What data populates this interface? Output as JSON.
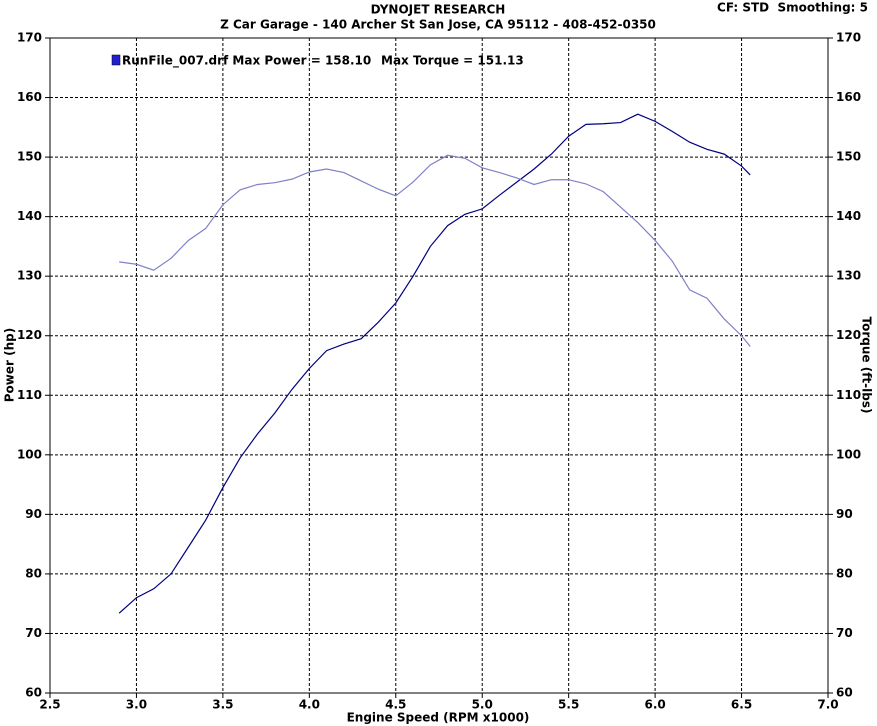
{
  "chart_data": {
    "type": "line",
    "title": "DYNOJET RESEARCH",
    "subtitle": "Z Car Garage - 140 Archer St San Jose, CA 95112 - 408-452-0350",
    "corner_note": "CF: STD  Smoothing: 5",
    "annotations": [
      "RunFile_007.drf Max Power = 158.10",
      "Max Torque = 151.13"
    ],
    "legend_color": "#2020d0",
    "xlabel": "Engine Speed (RPM x1000)",
    "ylabel": "Power (hp)",
    "y2label": "Torque (ft-lbs)",
    "x": [
      2.9,
      3.0,
      3.1,
      3.2,
      3.3,
      3.4,
      3.5,
      3.6,
      3.7,
      3.8,
      3.9,
      4.0,
      4.1,
      4.2,
      4.3,
      4.4,
      4.5,
      4.6,
      4.7,
      4.8,
      4.9,
      5.0,
      5.1,
      5.2,
      5.3,
      5.4,
      5.5,
      5.6,
      5.7,
      5.8,
      5.9,
      6.0,
      6.1,
      6.2,
      6.3,
      6.4,
      6.5,
      6.55
    ],
    "series": [
      {
        "color": "#000080",
        "values": [
          73.4,
          76,
          77.5,
          80,
          84.5,
          89,
          94.5,
          99.5,
          103.5,
          107,
          111,
          114.5,
          117.5,
          118.6,
          119.5,
          122.3,
          125.5,
          130,
          135,
          138.5,
          140.4,
          141.3,
          143.6,
          145.8,
          148,
          150.5,
          153.5,
          155.5,
          155.6,
          155.8,
          157.2,
          156,
          154.3,
          152.5,
          151.3,
          150.5,
          148.5,
          147.0
        ]
      },
      {
        "color": "#8080c8",
        "axis": "y2",
        "values": [
          132.4,
          132,
          131,
          133,
          136,
          138,
          142,
          144.5,
          145.4,
          145.7,
          146.3,
          147.5,
          148,
          147.4,
          146,
          144.6,
          143.5,
          145.8,
          148.7,
          150.3,
          149.8,
          148.2,
          147.4,
          146.5,
          145.4,
          146.2,
          146.2,
          145.5,
          144.2,
          141.6,
          139,
          136,
          132.5,
          127.7,
          126.3,
          122.8,
          120,
          118.2
        ]
      }
    ],
    "xlim": [
      2.5,
      7.0
    ],
    "xticks": [
      2.5,
      {
        "value": 3,
        "label": "3.0"
      },
      3.5,
      {
        "value": 4,
        "label": "4.0"
      },
      4.5,
      {
        "value": 5,
        "label": "5.0"
      },
      5.5,
      {
        "value": 6,
        "label": "6.0"
      },
      6.5,
      {
        "value": 7,
        "label": "7.0"
      }
    ],
    "ylim": [
      60,
      170
    ],
    "yticks": [
      60,
      70,
      80,
      90,
      100,
      110,
      120,
      130,
      140,
      150,
      160,
      170
    ],
    "y2lim": [
      60,
      170
    ],
    "y2ticks": [
      60,
      70,
      80,
      90,
      100,
      110,
      120,
      130,
      140,
      150,
      160,
      170
    ],
    "grid": true
  }
}
